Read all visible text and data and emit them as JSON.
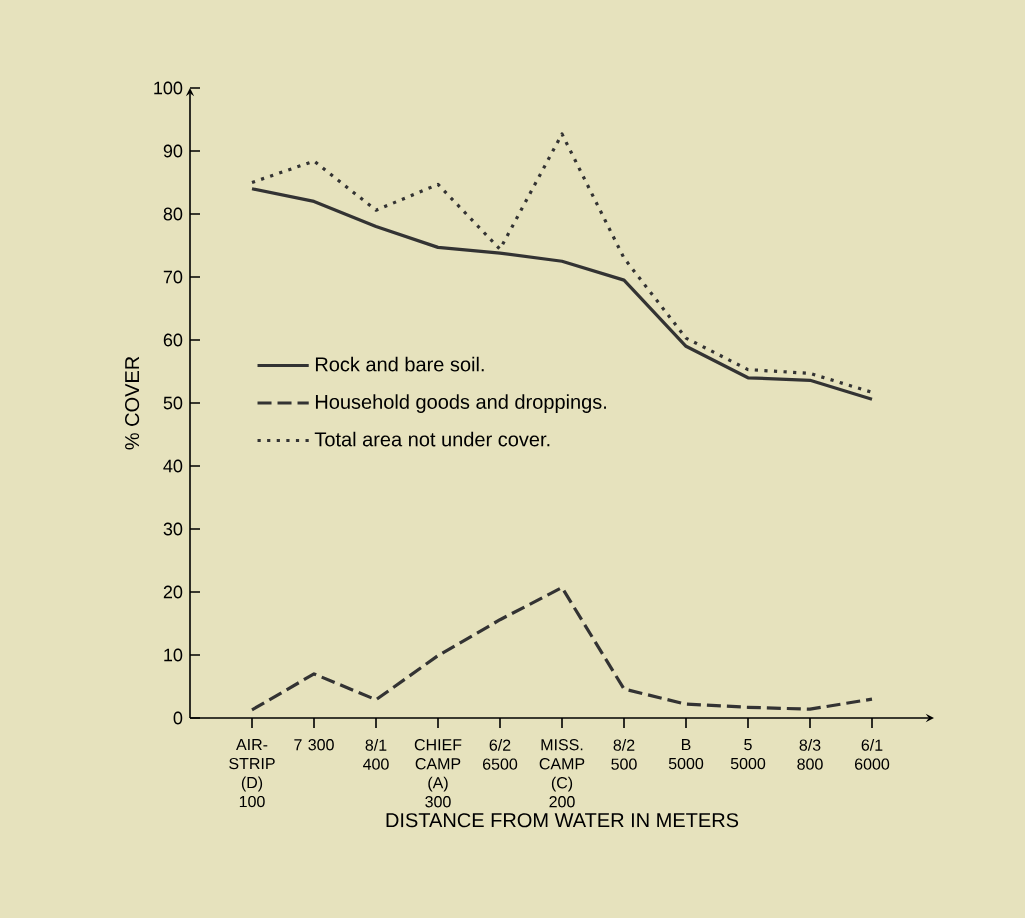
{
  "chart_data": {
    "type": "line",
    "xlabel": "DISTANCE FROM WATER IN METERS",
    "ylabel": "% COVER",
    "categories": [
      "AIR-STRIP (D) 100",
      "7 300",
      "8/1 400",
      "CHIEF CAMP (A) 300",
      "6/2 6500",
      "MISS. CAMP (C) 200",
      "8/2 500",
      "B 5000",
      "5 5000",
      "8/3 800",
      "6/1 6000"
    ],
    "series": [
      {
        "name": "Rock and bare soil.",
        "color": "#333333",
        "line_style": "solid",
        "values": [
          84,
          82,
          78,
          74.7,
          73.8,
          72.5,
          69.5,
          59,
          54,
          53.6,
          50.6
        ]
      },
      {
        "name": "Household goods and droppings.",
        "color": "#333333",
        "line_style": "dashed",
        "values": [
          1.3,
          7,
          2.9,
          9.9,
          15.6,
          20.7,
          4.6,
          2.2,
          1.7,
          1.4,
          3
        ]
      },
      {
        "name": "Total area not under cover.",
        "color": "#333333",
        "line_style": "dotted",
        "values": [
          85,
          88.4,
          80.6,
          84.7,
          74.4,
          92.7,
          73,
          60.3,
          55.3,
          54.7,
          51.7
        ]
      }
    ],
    "ylim": [
      0,
      100
    ],
    "yticks": [
      0,
      10,
      20,
      30,
      40,
      50,
      60,
      70,
      80,
      90,
      100
    ],
    "grid": false,
    "legend": "left",
    "marker": "none"
  }
}
